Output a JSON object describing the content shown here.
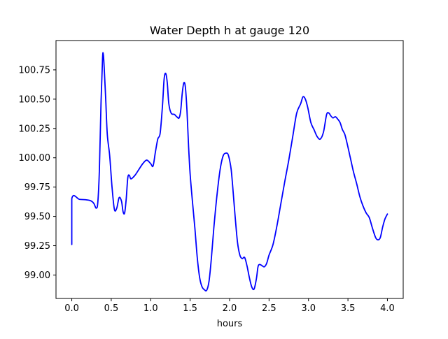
{
  "chart_data": {
    "type": "line",
    "title": "Water Depth h at gauge 120",
    "xlabel": "hours",
    "ylabel": "",
    "xlim": [
      -0.2,
      4.2
    ],
    "ylim": [
      98.8,
      101.0
    ],
    "x_ticks": [
      0.0,
      0.5,
      1.0,
      1.5,
      2.0,
      2.5,
      3.0,
      3.5,
      4.0
    ],
    "x_tick_labels": [
      "0.0",
      "0.5",
      "1.0",
      "1.5",
      "2.0",
      "2.5",
      "3.0",
      "3.5",
      "4.0"
    ],
    "y_ticks": [
      99.0,
      99.25,
      99.5,
      99.75,
      100.0,
      100.25,
      100.5,
      100.75
    ],
    "y_tick_labels": [
      "99.00",
      "99.25",
      "99.50",
      "99.75",
      "100.00",
      "100.25",
      "100.50",
      "100.75"
    ],
    "grid": false,
    "legend": "none",
    "series": [
      {
        "color": "#0000ff",
        "x": [
          0.0,
          0.0,
          0.1,
          0.2,
          0.25,
          0.28,
          0.31,
          0.33,
          0.35,
          0.37,
          0.39,
          0.4,
          0.41,
          0.43,
          0.45,
          0.48,
          0.51,
          0.54,
          0.57,
          0.6,
          0.63,
          0.65,
          0.67,
          0.69,
          0.71,
          0.73,
          0.75,
          0.8,
          0.85,
          0.9,
          0.95,
          1.0,
          1.03,
          1.06,
          1.09,
          1.12,
          1.15,
          1.17,
          1.19,
          1.21,
          1.23,
          1.26,
          1.3,
          1.33,
          1.36,
          1.38,
          1.4,
          1.42,
          1.44,
          1.46,
          1.48,
          1.5,
          1.53,
          1.56,
          1.59,
          1.62,
          1.65,
          1.68,
          1.71,
          1.74,
          1.77,
          1.8,
          1.84,
          1.88,
          1.92,
          1.96,
          1.98,
          2.0,
          2.02,
          2.04,
          2.07,
          2.1,
          2.13,
          2.16,
          2.19,
          2.22,
          2.25,
          2.28,
          2.31,
          2.34,
          2.36,
          2.38,
          2.41,
          2.44,
          2.47,
          2.5,
          2.55,
          2.6,
          2.65,
          2.7,
          2.75,
          2.8,
          2.85,
          2.9,
          2.93,
          2.96,
          2.99,
          3.03,
          3.07,
          3.11,
          3.15,
          3.19,
          3.23,
          3.26,
          3.28,
          3.31,
          3.34,
          3.37,
          3.4,
          3.43,
          3.46,
          3.49,
          3.53,
          3.57,
          3.61,
          3.65,
          3.69,
          3.73,
          3.77,
          3.81,
          3.85,
          3.88,
          3.91,
          3.94,
          3.97,
          4.0
        ],
        "values": [
          99.26,
          99.65,
          99.645,
          99.64,
          99.63,
          99.61,
          99.57,
          99.62,
          99.9,
          100.45,
          100.85,
          100.88,
          100.78,
          100.5,
          100.2,
          100.02,
          99.75,
          99.56,
          99.57,
          99.66,
          99.63,
          99.54,
          99.53,
          99.65,
          99.83,
          99.85,
          99.82,
          99.85,
          99.9,
          99.95,
          99.98,
          99.95,
          99.93,
          100.05,
          100.16,
          100.21,
          100.45,
          100.67,
          100.72,
          100.64,
          100.46,
          100.38,
          100.37,
          100.35,
          100.34,
          100.4,
          100.55,
          100.64,
          100.6,
          100.4,
          100.1,
          99.86,
          99.62,
          99.4,
          99.15,
          98.98,
          98.9,
          98.875,
          98.87,
          98.95,
          99.15,
          99.4,
          99.68,
          99.9,
          100.02,
          100.04,
          100.03,
          99.98,
          99.9,
          99.75,
          99.5,
          99.28,
          99.17,
          99.14,
          99.15,
          99.08,
          98.98,
          98.9,
          98.88,
          98.97,
          99.07,
          99.09,
          99.08,
          99.07,
          99.1,
          99.17,
          99.26,
          99.42,
          99.61,
          99.8,
          99.98,
          100.18,
          100.38,
          100.46,
          100.52,
          100.5,
          100.43,
          100.3,
          100.24,
          100.18,
          100.16,
          100.22,
          100.37,
          100.38,
          100.36,
          100.34,
          100.35,
          100.33,
          100.3,
          100.24,
          100.2,
          100.12,
          100.0,
          99.88,
          99.78,
          99.67,
          99.59,
          99.53,
          99.49,
          99.4,
          99.32,
          99.3,
          99.32,
          99.41,
          99.48,
          99.52
        ]
      }
    ]
  }
}
